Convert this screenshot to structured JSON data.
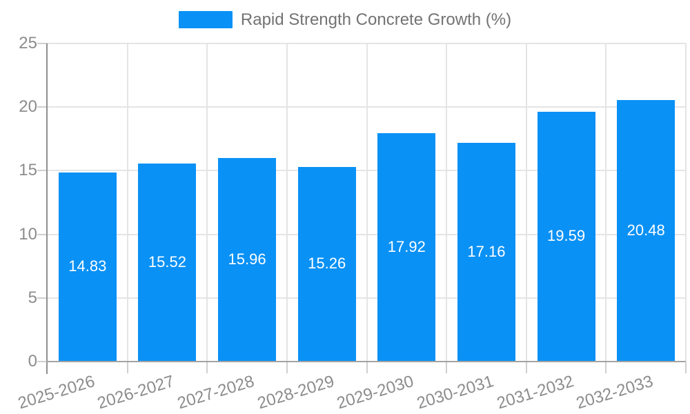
{
  "legend": {
    "label": "Rapid Strength Concrete Growth (%)"
  },
  "chart_data": {
    "type": "bar",
    "title": "Rapid Strength Concrete Growth (%)",
    "categories": [
      "2025-2026",
      "2026-2027",
      "2027-2028",
      "2028-2029",
      "2029-2030",
      "2030-2031",
      "2031-2032",
      "2032-2033"
    ],
    "series": [
      {
        "name": "Rapid Strength Concrete Growth (%)",
        "values": [
          14.83,
          15.52,
          15.96,
          15.26,
          17.92,
          17.16,
          19.59,
          20.48
        ],
        "value_labels": [
          "14.83",
          "15.52",
          "15.96",
          "15.26",
          "17.92",
          "17.16",
          "19.59",
          "20.48"
        ]
      }
    ],
    "xlabel": "",
    "ylabel": "",
    "ylim": [
      0,
      25
    ],
    "yticks": [
      0,
      5,
      10,
      15,
      20,
      25
    ],
    "grid": true,
    "legend_position": "top-center",
    "x_label_rotation_deg": -17,
    "colors": {
      "bar": "#0a91f5",
      "value_label": "#ffffff",
      "axis_text": "#8c8c8c",
      "legend_text": "#737373",
      "gridline": "#e4e4e4",
      "axis_line_y": "#8f8f8f",
      "axis_line_x": "#a3a3a3",
      "tick": "#cfcfcf",
      "background": "#ffffff"
    }
  }
}
